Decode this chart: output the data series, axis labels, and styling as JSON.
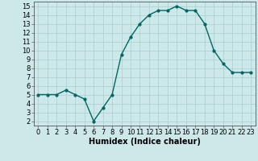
{
  "x": [
    0,
    1,
    2,
    3,
    4,
    5,
    6,
    7,
    8,
    9,
    10,
    11,
    12,
    13,
    14,
    15,
    16,
    17,
    18,
    19,
    20,
    21,
    22,
    23
  ],
  "y": [
    5,
    5,
    5,
    5.5,
    5,
    4.5,
    2,
    3.5,
    5,
    9.5,
    11.5,
    13,
    14,
    14.5,
    14.5,
    15,
    14.5,
    14.5,
    13,
    10,
    8.5,
    7.5,
    7.5,
    7.5
  ],
  "line_color": "#006666",
  "marker": "o",
  "marker_size": 2,
  "xlabel": "Humidex (Indice chaleur)",
  "xlim": [
    -0.5,
    23.5
  ],
  "ylim": [
    1.5,
    15.5
  ],
  "yticks": [
    2,
    3,
    4,
    5,
    6,
    7,
    8,
    9,
    10,
    11,
    12,
    13,
    14,
    15
  ],
  "xticks": [
    0,
    1,
    2,
    3,
    4,
    5,
    6,
    7,
    8,
    9,
    10,
    11,
    12,
    13,
    14,
    15,
    16,
    17,
    18,
    19,
    20,
    21,
    22,
    23
  ],
  "background_color": "#cce8e8",
  "grid_color": "#aacece",
  "font_size": 6,
  "xlabel_fontsize": 7,
  "linewidth": 1.0
}
